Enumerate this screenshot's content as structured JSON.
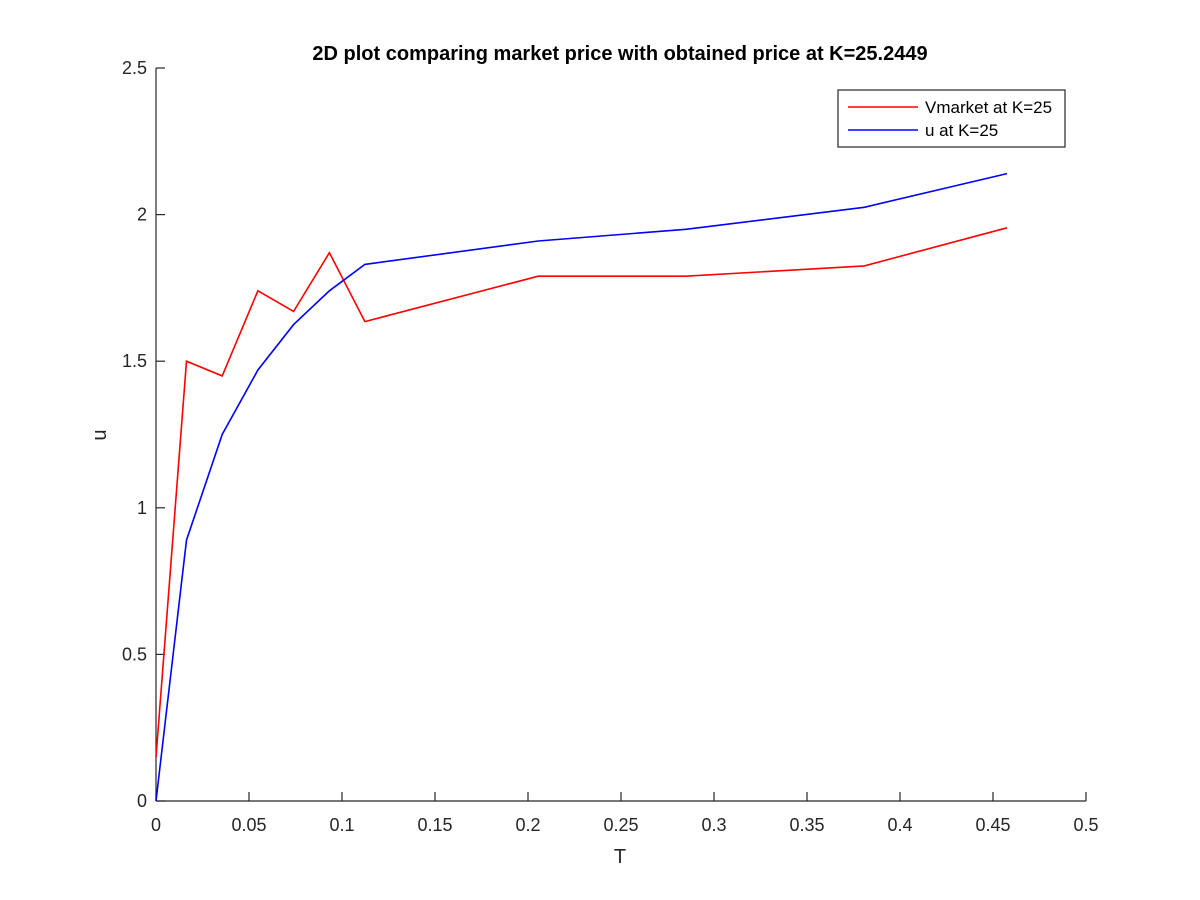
{
  "chart_data": {
    "type": "line",
    "title": "2D plot comparing market price with obtained price at K=25.2449",
    "xlabel": "T",
    "ylabel": "u",
    "xlim": [
      0,
      0.5
    ],
    "ylim": [
      0,
      2.5
    ],
    "xticks": [
      0,
      0.05,
      0.1,
      0.15,
      0.2,
      0.25,
      0.3,
      0.35,
      0.4,
      0.45,
      0.5
    ],
    "xtick_labels": [
      "0",
      "0.05",
      "0.1",
      "0.15",
      "0.2",
      "0.25",
      "0.3",
      "0.35",
      "0.4",
      "0.45",
      "0.5"
    ],
    "yticks": [
      0,
      0.5,
      1,
      1.5,
      2,
      2.5
    ],
    "ytick_labels": [
      "0",
      "0.5",
      "1",
      "1.5",
      "2",
      "2.5"
    ],
    "grid": false,
    "legend_position": "top-right",
    "series": [
      {
        "name": "Vmarket at K=25",
        "color": "#ff0000",
        "x": [
          0,
          0.0164,
          0.0356,
          0.0548,
          0.074,
          0.0932,
          0.1123,
          0.2055,
          0.2849,
          0.3808,
          0.4575
        ],
        "y": [
          0.15,
          1.5,
          1.45,
          1.74,
          1.67,
          1.87,
          1.635,
          1.79,
          1.79,
          1.825,
          1.955
        ]
      },
      {
        "name": "u at K=25",
        "color": "#0000ff",
        "x": [
          0,
          0.0164,
          0.0356,
          0.0548,
          0.074,
          0.0932,
          0.1123,
          0.2055,
          0.2849,
          0.3808,
          0.4575
        ],
        "y": [
          0,
          0.89,
          1.25,
          1.47,
          1.625,
          1.74,
          1.83,
          1.91,
          1.95,
          2.025,
          2.14
        ]
      }
    ]
  }
}
